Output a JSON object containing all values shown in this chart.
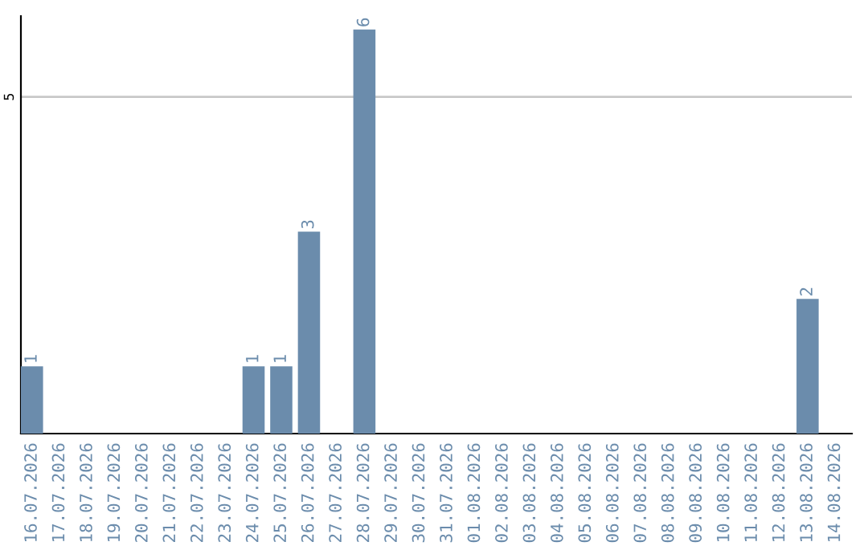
{
  "chart_data": {
    "type": "bar",
    "categories": [
      "16.07.2026",
      "17.07.2026",
      "18.07.2026",
      "19.07.2026",
      "20.07.2026",
      "21.07.2026",
      "22.07.2026",
      "23.07.2026",
      "24.07.2026",
      "25.07.2026",
      "26.07.2026",
      "27.07.2026",
      "28.07.2026",
      "29.07.2026",
      "30.07.2026",
      "31.07.2026",
      "01.08.2026",
      "02.08.2026",
      "03.08.2026",
      "04.08.2026",
      "05.08.2026",
      "06.08.2026",
      "07.08.2026",
      "08.08.2026",
      "09.08.2026",
      "10.08.2026",
      "11.08.2026",
      "12.08.2026",
      "13.08.2026",
      "14.08.2026"
    ],
    "values": [
      1,
      0,
      0,
      0,
      0,
      0,
      0,
      0,
      1,
      1,
      3,
      0,
      6,
      0,
      0,
      0,
      0,
      0,
      0,
      0,
      0,
      0,
      0,
      0,
      0,
      0,
      0,
      0,
      2,
      0
    ],
    "value_labels": [
      "1",
      null,
      null,
      null,
      null,
      null,
      null,
      null,
      "1",
      "1",
      "3",
      null,
      "6",
      null,
      null,
      null,
      null,
      null,
      null,
      null,
      null,
      null,
      null,
      null,
      null,
      null,
      null,
      null,
      "2",
      null
    ],
    "color": "#6b8cac",
    "ylim": [
      0,
      6.2
    ],
    "yticks": [
      5
    ],
    "grid": "y"
  }
}
